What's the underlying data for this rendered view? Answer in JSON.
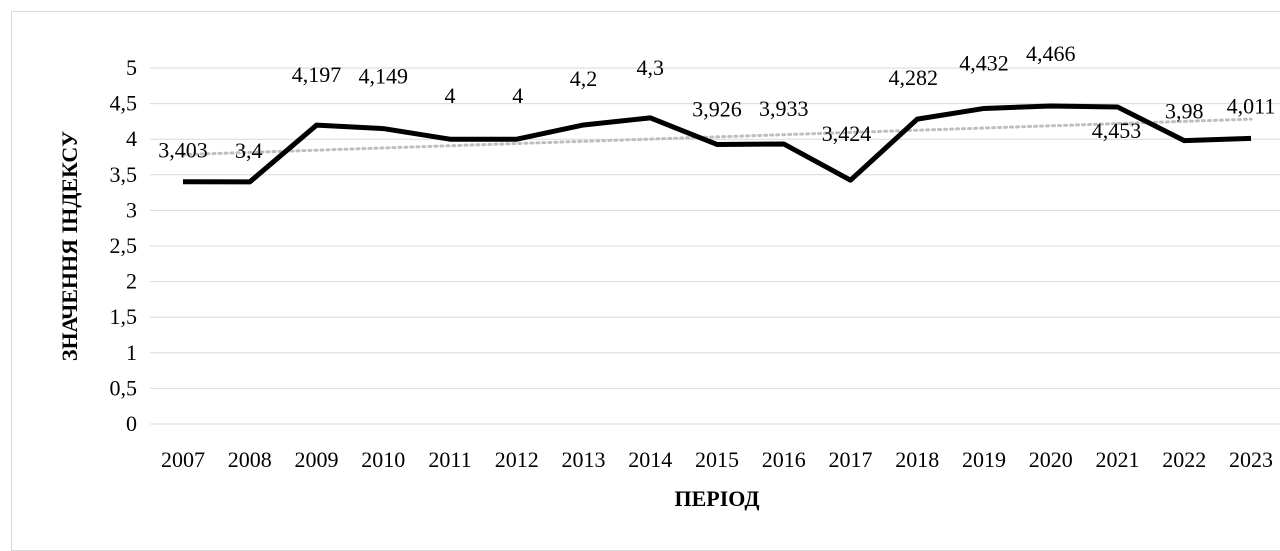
{
  "chart_data": {
    "type": "line",
    "title": "",
    "xlabel": "ПЕРІОД",
    "ylabel": "ЗНАЧЕННЯ ІНДЕКСУ",
    "ylim": [
      0,
      5
    ],
    "y_ticks": [
      "0",
      "0,5",
      "1",
      "1,5",
      "2",
      "2,5",
      "3",
      "3,5",
      "4",
      "4,5",
      "5"
    ],
    "grid": "horizontal",
    "legend": "none",
    "categories": [
      "2007",
      "2008",
      "2009",
      "2010",
      "2011",
      "2012",
      "2013",
      "2014",
      "2015",
      "2016",
      "2017",
      "2018",
      "2019",
      "2020",
      "2021",
      "2022",
      "2023"
    ],
    "series": [
      {
        "values": [
          3.403,
          3.4,
          4.197,
          4.149,
          4.0,
          4.0,
          4.2,
          4.3,
          3.926,
          3.933,
          3.424,
          4.282,
          4.432,
          4.466,
          4.453,
          3.98,
          4.011
        ],
        "data_labels": [
          "3,403",
          "3,4",
          "4,197",
          "4,149",
          "4",
          "4",
          "4,2",
          "4,3",
          "3,926",
          "3,933",
          "3,424",
          "4,282",
          "4,432",
          "4,466",
          "4,453",
          "3,98",
          "4,011"
        ],
        "color": "#000000"
      }
    ],
    "trendline": {
      "type": "linear",
      "style": "dotted",
      "color": "#bfbfbf"
    },
    "colors": {
      "line": "#000000",
      "trend": "#bfbfbf",
      "grid": "#d9d9d9",
      "border": "#d9d9d9"
    }
  }
}
